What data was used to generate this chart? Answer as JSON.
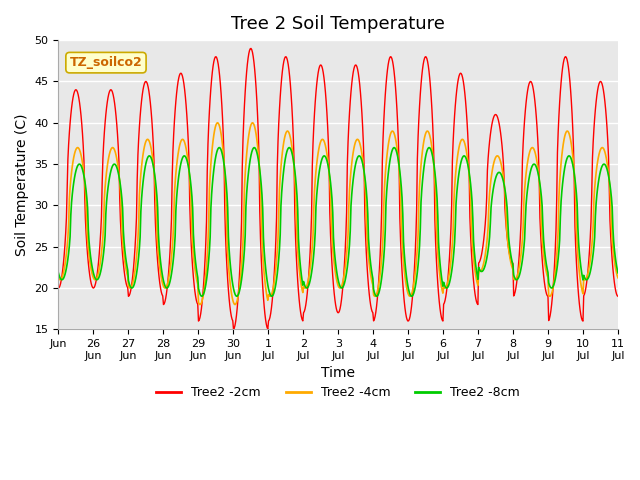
{
  "title": "Tree 2 Soil Temperature",
  "ylabel": "Soil Temperature (C)",
  "xlabel": "Time",
  "ylim": [
    15,
    50
  ],
  "series_labels": [
    "Tree2 -2cm",
    "Tree2 -4cm",
    "Tree2 -8cm"
  ],
  "series_colors": [
    "#ff0000",
    "#ffaa00",
    "#00cc00"
  ],
  "plot_bg_color": "#e8e8e8",
  "tick_labels": [
    "Jun",
    "26\nJun",
    "27\nJun",
    "28\nJun",
    "29\nJun",
    "30\nJun",
    "1\nJul",
    "2\nJul",
    "3\nJul",
    "4\nJul",
    "5\nJul",
    "6\nJul",
    "7\nJul",
    "8\nJul",
    "9\nJul",
    "10\nJul",
    "11\nJul"
  ],
  "yticks": [
    15,
    20,
    25,
    30,
    35,
    40,
    45,
    50
  ],
  "title_fontsize": 13,
  "axis_label_fontsize": 10,
  "tick_fontsize": 8,
  "n_days": 16,
  "pts_per_day": 48,
  "base_2cm": 32,
  "base_4cm": 29,
  "base_8cm": 28,
  "phase_2cm": 0.25,
  "phase_4cm": 0.3,
  "phase_8cm": 0.35,
  "day_amps_2": [
    12,
    12,
    13,
    14,
    16,
    17,
    16,
    15,
    15,
    16,
    16,
    14,
    9,
    13,
    16,
    13
  ],
  "day_amps_4": [
    8,
    8,
    9,
    9,
    11,
    11,
    10,
    9,
    9,
    10,
    10,
    9,
    7,
    8,
    10,
    8
  ],
  "day_amps_8": [
    7,
    7,
    8,
    8,
    9,
    9,
    9,
    8,
    8,
    9,
    9,
    8,
    6,
    7,
    8,
    7
  ],
  "annotation_text": "TZ_soilco2",
  "annotation_color": "#cc6600",
  "annotation_bg": "#ffffcc",
  "annotation_edge": "#ccaa00"
}
